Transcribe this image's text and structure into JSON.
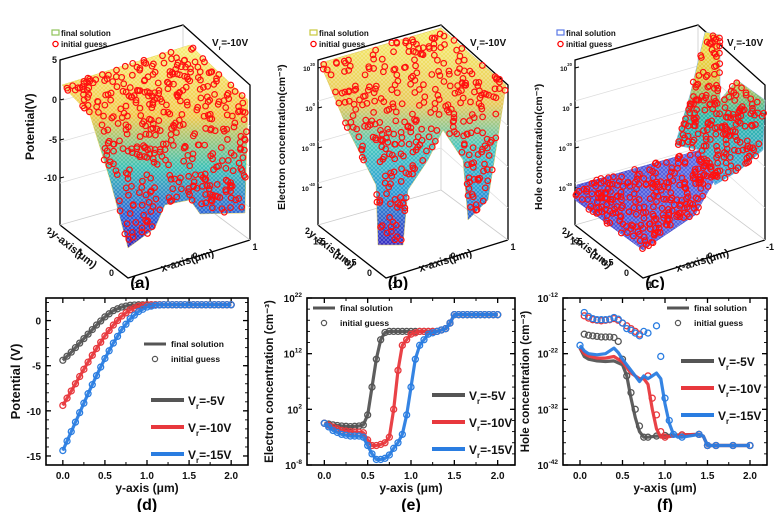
{
  "panels_3d": [
    {
      "id": "a",
      "caption": "(a)",
      "zlabel": "Potential(V)",
      "zticks": [
        "5",
        "0",
        "-5",
        "-10"
      ],
      "ylabel": "y-axis(μm)",
      "yticks": [
        "2",
        "1",
        "0"
      ],
      "xlabel": "x-axis(μm)",
      "xticks": [
        "-1",
        "0",
        "1"
      ],
      "legend": [
        {
          "label": "final solution",
          "marker": "mesh",
          "color": "#8fc35a"
        },
        {
          "label": "initial guess",
          "marker": "circle",
          "color": "#ff0000"
        }
      ],
      "annotation": "V_r=-10V"
    },
    {
      "id": "b",
      "caption": "(b)",
      "zlabel": "Electron concentration(cm⁻³)",
      "zticks": [
        "10^20",
        "10^0",
        "10^-20",
        "10^-40"
      ],
      "ylabel": "y-axis(μm)",
      "yticks": [
        "2",
        "1.5",
        "1",
        "0.5",
        "0"
      ],
      "xlabel": "x-axis(μm)",
      "xticks": [
        "-1",
        "0",
        "1"
      ],
      "legend": [
        {
          "label": "final solution",
          "marker": "mesh",
          "color": "#c8c83c"
        },
        {
          "label": "initial guess",
          "marker": "circle",
          "color": "#ff0000"
        }
      ],
      "annotation": "V_r=-10V"
    },
    {
      "id": "c",
      "caption": "(c)",
      "zlabel": "Hole concentration(cm⁻³)",
      "zticks": [
        "10^20",
        "10^0",
        "10^-20",
        "10^-40"
      ],
      "ylabel": "y-axis(μm)",
      "yticks": [
        "2",
        "1.5",
        "1",
        "0.5",
        "0"
      ],
      "xlabel": "x-axis(μm)",
      "xticks": [
        "1",
        "0",
        "-1"
      ],
      "legend": [
        {
          "label": "final solution",
          "marker": "mesh",
          "color": "#5a78e6"
        },
        {
          "label": "initial guess",
          "marker": "circle",
          "color": "#ff0000"
        }
      ],
      "annotation": "V_r=-10V"
    }
  ],
  "chart_data": [
    {
      "id": "d",
      "type": "line",
      "caption": "(d)",
      "title": "",
      "xlabel": "y-axis (μm)",
      "ylabel": "Potential (V)",
      "xlim": [
        -0.2,
        2.2
      ],
      "ylim": [
        -16,
        2.5
      ],
      "yscale": "linear",
      "xticks": [
        0.0,
        0.5,
        1.0,
        1.5,
        2.0
      ],
      "xtick_labels": [
        "0.0",
        "0.5",
        "1.0",
        "1.5",
        "2.0"
      ],
      "yticks": [
        0,
        -5,
        -10,
        -15
      ],
      "ytick_labels": [
        "0",
        "-5",
        "-10",
        "-15"
      ],
      "legend_style": [
        {
          "label": "final solution",
          "kind": "line"
        },
        {
          "label": "initial guess",
          "kind": "circle"
        }
      ],
      "series": [
        {
          "name": "V_r=-5V",
          "color": "#555555",
          "x": [
            0,
            0.1,
            0.2,
            0.3,
            0.4,
            0.5,
            0.6,
            0.7,
            0.8,
            0.9,
            1.0,
            1.1,
            1.2,
            1.3,
            1.4,
            1.5,
            1.6,
            1.7,
            1.8,
            1.9,
            2.0
          ],
          "y": [
            -4.4,
            -3.5,
            -2.5,
            -1.5,
            -0.5,
            0.4,
            1.1,
            1.5,
            1.7,
            1.75,
            1.75,
            1.75,
            1.75,
            1.75,
            1.75,
            1.75,
            1.75,
            1.75,
            1.75,
            1.75,
            1.75
          ]
        },
        {
          "name": "V_r=-10V",
          "color": "#e8383d",
          "x": [
            0,
            0.1,
            0.2,
            0.3,
            0.4,
            0.5,
            0.6,
            0.7,
            0.8,
            0.9,
            1.0,
            1.1,
            1.2,
            1.3,
            1.4,
            1.5,
            1.6,
            1.7,
            1.8,
            1.9,
            2.0
          ],
          "y": [
            -9.4,
            -7.8,
            -6.2,
            -4.6,
            -3.1,
            -1.7,
            -0.5,
            0.5,
            1.2,
            1.6,
            1.75,
            1.75,
            1.75,
            1.75,
            1.75,
            1.75,
            1.75,
            1.75,
            1.75,
            1.75,
            1.75
          ]
        },
        {
          "name": "V_r=-15V",
          "color": "#2a7de1",
          "x": [
            0,
            0.1,
            0.2,
            0.3,
            0.4,
            0.5,
            0.6,
            0.7,
            0.8,
            0.9,
            1.0,
            1.1,
            1.2,
            1.3,
            1.4,
            1.5,
            1.6,
            1.7,
            1.8,
            1.9,
            2.0
          ],
          "y": [
            -14.4,
            -12.3,
            -10.2,
            -8.1,
            -6.1,
            -4.2,
            -2.5,
            -1.0,
            0.2,
            1.0,
            1.5,
            1.7,
            1.75,
            1.75,
            1.75,
            1.75,
            1.75,
            1.75,
            1.75,
            1.75,
            1.75
          ]
        }
      ]
    },
    {
      "id": "e",
      "type": "line",
      "caption": "(e)",
      "title": "",
      "xlabel": "y-axis (μm)",
      "ylabel": "Electron concentration (cm⁻³)",
      "xlim": [
        -0.2,
        2.2
      ],
      "ylim": [
        -8,
        22
      ],
      "yscale": "log10",
      "xticks": [
        0.0,
        0.5,
        1.0,
        1.5,
        2.0
      ],
      "xtick_labels": [
        "0.0",
        "0.5",
        "1.0",
        "1.5",
        "2.0"
      ],
      "yticks": [
        22,
        12,
        2,
        -8
      ],
      "ytick_labels": [
        "10^22",
        "10^12",
        "10^2",
        "10^-8"
      ],
      "legend_style": [
        {
          "label": "final solution",
          "kind": "line"
        },
        {
          "label": "initial guess",
          "kind": "circle"
        }
      ],
      "series": [
        {
          "name": "V_r=-5V",
          "color": "#555555",
          "x": [
            0,
            0.1,
            0.2,
            0.3,
            0.4,
            0.45,
            0.5,
            0.55,
            0.6,
            0.65,
            0.7,
            0.75,
            0.8,
            0.9,
            1.0,
            1.1,
            1.2,
            1.3,
            1.4,
            1.45,
            1.5,
            1.6,
            1.8,
            2.0
          ],
          "y": [
            -0.5,
            -0.8,
            -1.0,
            -1.1,
            -1.0,
            -0.8,
            1.0,
            6.0,
            11.0,
            14.5,
            15.8,
            16.0,
            16.0,
            16.0,
            16.0,
            16.0,
            16.0,
            16.0,
            16.5,
            17.5,
            19.0,
            19.0,
            19.0,
            19.0
          ]
        },
        {
          "name": "V_r=-10V",
          "color": "#e8383d",
          "x": [
            0,
            0.1,
            0.2,
            0.3,
            0.4,
            0.45,
            0.5,
            0.55,
            0.6,
            0.65,
            0.7,
            0.75,
            0.8,
            0.85,
            0.9,
            1.0,
            1.1,
            1.2,
            1.3,
            1.4,
            1.45,
            1.5,
            1.6,
            1.8,
            2.0
          ],
          "y": [
            -0.5,
            -1.2,
            -1.8,
            -2.0,
            -2.1,
            -2.2,
            -3.5,
            -4.5,
            -4.5,
            -4.3,
            -4.0,
            -3.0,
            2.0,
            9.0,
            13.5,
            15.5,
            16.0,
            16.0,
            16.0,
            16.5,
            17.5,
            19.0,
            19.0,
            19.0,
            19.0
          ]
        },
        {
          "name": "V_r=-15V",
          "color": "#2a7de1",
          "x": [
            0,
            0.1,
            0.2,
            0.3,
            0.4,
            0.45,
            0.5,
            0.55,
            0.6,
            0.65,
            0.7,
            0.75,
            0.8,
            0.85,
            0.9,
            0.95,
            1.0,
            1.05,
            1.1,
            1.2,
            1.3,
            1.4,
            1.45,
            1.5,
            1.6,
            1.8,
            2.0
          ],
          "y": [
            -0.5,
            -1.8,
            -2.5,
            -2.8,
            -2.8,
            -3.0,
            -4.5,
            -6.0,
            -7.0,
            -7.0,
            -6.8,
            -6.2,
            -5.0,
            -4.0,
            -2.5,
            1.0,
            6.0,
            11.0,
            13.5,
            15.5,
            16.0,
            16.5,
            17.5,
            19.0,
            19.0,
            19.0,
            19.0
          ]
        }
      ]
    },
    {
      "id": "f",
      "type": "line",
      "caption": "(f)",
      "title": "",
      "xlabel": "y-axis (μm)",
      "ylabel": "Hole concentration (cm⁻³)",
      "xlim": [
        -0.2,
        2.2
      ],
      "ylim": [
        -42,
        -12
      ],
      "yscale": "log10",
      "xticks": [
        0.0,
        0.5,
        1.0,
        1.5,
        2.0
      ],
      "xtick_labels": [
        "0.0",
        "0.5",
        "1.0",
        "1.5",
        "2.0"
      ],
      "yticks": [
        -12,
        -22,
        -32,
        -42
      ],
      "ytick_labels": [
        "10^-12",
        "10^-22",
        "10^-32",
        "10^-42"
      ],
      "legend_style": [
        {
          "label": "final solution",
          "kind": "line"
        },
        {
          "label": "initial guess",
          "kind": "circle"
        }
      ],
      "series": [
        {
          "name": "V_r=-5V",
          "color": "#555555",
          "x": [
            0,
            0.05,
            0.1,
            0.2,
            0.3,
            0.4,
            0.5,
            0.55,
            0.6,
            0.65,
            0.7,
            0.75,
            0.8,
            0.9,
            1.0,
            1.2,
            1.4,
            1.45,
            1.5,
            1.6,
            1.8,
            2.0
          ],
          "y": [
            -21.0,
            -22.5,
            -23.0,
            -23.3,
            -23.4,
            -23.3,
            -24.0,
            -26.0,
            -30.0,
            -33.5,
            -36.0,
            -37.0,
            -37.0,
            -36.8,
            -36.7,
            -36.6,
            -36.5,
            -36.8,
            -38.5,
            -38.5,
            -38.5,
            -38.5
          ],
          "guess_x": [
            0.05,
            0.1,
            0.15,
            0.2,
            0.25,
            0.3,
            0.35,
            0.4,
            0.45,
            0.5,
            0.55,
            0.6,
            0.65,
            0.7,
            0.75,
            0.8,
            0.9,
            1.0,
            1.2,
            1.4,
            1.5,
            1.6,
            1.8,
            2.0
          ],
          "guess_y": [
            -18.5,
            -18.7,
            -18.8,
            -18.9,
            -19.0,
            -19.0,
            -19.0,
            -19.1,
            -19.8,
            -23.0,
            -26.0,
            -29.0,
            -32.0,
            -35.0,
            -37.0,
            -37.0,
            -36.8,
            -36.7,
            -36.6,
            -36.5,
            -38.5,
            -38.5,
            -38.5,
            -38.5
          ]
        },
        {
          "name": "V_r=-10V",
          "color": "#e8383d",
          "x": [
            0,
            0.05,
            0.1,
            0.2,
            0.3,
            0.4,
            0.5,
            0.6,
            0.7,
            0.75,
            0.8,
            0.85,
            0.9,
            0.95,
            1.0,
            1.2,
            1.4,
            1.45,
            1.5,
            1.6,
            1.8,
            2.0
          ],
          "y": [
            -21.0,
            -22.0,
            -22.4,
            -22.8,
            -22.8,
            -22.5,
            -23.5,
            -25.5,
            -26.5,
            -26.5,
            -27.5,
            -32.0,
            -35.5,
            -37.0,
            -37.0,
            -36.6,
            -36.5,
            -36.8,
            -38.5,
            -38.5,
            -38.5,
            -38.5
          ],
          "guess_x": [
            0.05,
            0.1,
            0.15,
            0.2,
            0.25,
            0.3,
            0.35,
            0.4,
            0.45,
            0.5,
            0.55,
            0.6,
            0.65,
            0.7,
            0.8,
            0.85,
            0.9,
            0.95,
            1.0,
            1.2,
            1.4,
            1.5,
            1.6,
            1.8,
            2.0
          ],
          "guess_y": [
            -15.2,
            -15.6,
            -15.9,
            -16.0,
            -16.1,
            -16.0,
            -15.9,
            -15.7,
            -16.0,
            -16.5,
            -17.0,
            -17.5,
            -18.0,
            -18.5,
            -26.0,
            -30.0,
            -33.0,
            -36.0,
            -37.0,
            -36.6,
            -36.5,
            -38.5,
            -38.5,
            -38.5,
            -38.5
          ]
        },
        {
          "name": "V_r=-15V",
          "color": "#2a7de1",
          "x": [
            0,
            0.05,
            0.1,
            0.2,
            0.3,
            0.4,
            0.45,
            0.5,
            0.6,
            0.7,
            0.75,
            0.8,
            0.85,
            0.9,
            0.95,
            1.0,
            1.05,
            1.1,
            1.15,
            1.2,
            1.4,
            1.45,
            1.5,
            1.6,
            1.8,
            2.0
          ],
          "y": [
            -20.5,
            -21.5,
            -22.0,
            -22.2,
            -22.0,
            -21.0,
            -21.8,
            -23.0,
            -25.0,
            -27.0,
            -26.0,
            -26.5,
            -26.0,
            -25.5,
            -26.5,
            -31.0,
            -34.5,
            -36.5,
            -37.0,
            -37.0,
            -36.5,
            -36.8,
            -38.5,
            -38.5,
            -38.5,
            -38.5
          ],
          "guess_x": [
            0,
            0.05,
            0.1,
            0.15,
            0.2,
            0.25,
            0.3,
            0.35,
            0.4,
            0.45,
            0.5,
            0.55,
            0.6,
            0.65,
            0.7,
            0.75,
            0.8,
            0.9,
            0.95,
            1.0,
            1.05,
            1.1,
            1.2,
            1.4,
            1.5,
            1.6,
            1.8,
            2.0
          ],
          "guess_y": [
            -20.5,
            -14.6,
            -15.3,
            -15.7,
            -15.9,
            -15.9,
            -15.9,
            -15.8,
            -15.5,
            -15.8,
            -16.5,
            -17.5,
            -17.8,
            -18.3,
            -18.8,
            -18.0,
            -18.3,
            -17.0,
            -22.5,
            -30.0,
            -34.0,
            -36.5,
            -37.0,
            -36.5,
            -38.5,
            -38.5,
            -38.5,
            -38.5
          ]
        }
      ]
    }
  ]
}
